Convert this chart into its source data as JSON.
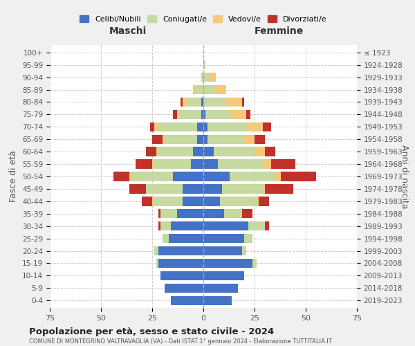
{
  "age_groups": [
    "100+",
    "95-99",
    "90-94",
    "85-89",
    "80-84",
    "75-79",
    "70-74",
    "65-69",
    "60-64",
    "55-59",
    "50-54",
    "45-49",
    "40-44",
    "35-39",
    "30-34",
    "25-29",
    "20-24",
    "15-19",
    "10-14",
    "5-9",
    "0-4"
  ],
  "birth_years": [
    "≤ 1923",
    "1924-1928",
    "1929-1933",
    "1934-1938",
    "1939-1943",
    "1944-1948",
    "1949-1953",
    "1954-1958",
    "1959-1963",
    "1964-1968",
    "1969-1973",
    "1974-1978",
    "1979-1983",
    "1984-1988",
    "1989-1993",
    "1994-1998",
    "1999-2003",
    "2004-2008",
    "2009-2013",
    "2014-2018",
    "2019-2023"
  ],
  "colors": {
    "celibi": "#4472c4",
    "coniugati": "#c5d9a0",
    "vedovi": "#f5c87a",
    "divorziati": "#c0312b"
  },
  "males": {
    "celibi": [
      0,
      0,
      0,
      0,
      1,
      1,
      3,
      3,
      5,
      6,
      15,
      10,
      10,
      13,
      16,
      17,
      22,
      22,
      21,
      19,
      16
    ],
    "coniugati": [
      0,
      0,
      1,
      4,
      7,
      11,
      19,
      16,
      17,
      18,
      20,
      18,
      14,
      8,
      5,
      3,
      2,
      1,
      0,
      0,
      0
    ],
    "vedovi": [
      0,
      0,
      0,
      1,
      2,
      1,
      2,
      1,
      1,
      1,
      1,
      0,
      1,
      0,
      0,
      0,
      0,
      0,
      0,
      0,
      0
    ],
    "divorziati": [
      0,
      0,
      0,
      0,
      1,
      2,
      2,
      5,
      5,
      8,
      8,
      8,
      5,
      1,
      1,
      0,
      0,
      0,
      0,
      0,
      0
    ]
  },
  "females": {
    "celibi": [
      0,
      0,
      0,
      0,
      0,
      1,
      2,
      2,
      5,
      7,
      13,
      9,
      8,
      10,
      22,
      20,
      19,
      24,
      20,
      17,
      14
    ],
    "coniugati": [
      0,
      1,
      3,
      6,
      11,
      13,
      20,
      18,
      20,
      22,
      22,
      20,
      18,
      9,
      8,
      4,
      2,
      2,
      0,
      0,
      0
    ],
    "vedovi": [
      0,
      0,
      3,
      5,
      8,
      7,
      7,
      5,
      5,
      4,
      3,
      1,
      1,
      0,
      0,
      0,
      0,
      0,
      0,
      0,
      0
    ],
    "divorziati": [
      0,
      0,
      0,
      0,
      1,
      2,
      4,
      5,
      5,
      12,
      17,
      14,
      5,
      5,
      2,
      0,
      0,
      0,
      0,
      0,
      0
    ]
  },
  "title": "Popolazione per età, sesso e stato civile - 2024",
  "subtitle": "COMUNE DI MONTEGRINO VALTRAVAGLIA (VA) - Dati ISTAT 1° gennaio 2024 - Elaborazione TUTTITALIA.IT",
  "xlabel_left": "Maschi",
  "xlabel_right": "Femmine",
  "ylabel_left": "Fasce di età",
  "ylabel_right": "Anni di nascita",
  "xlim": 75,
  "background_color": "#f0f0f0",
  "plot_background": "#ffffff",
  "legend_labels": [
    "Celibi/Nubili",
    "Coniugati/e",
    "Vedovi/e",
    "Divorziati/e"
  ]
}
